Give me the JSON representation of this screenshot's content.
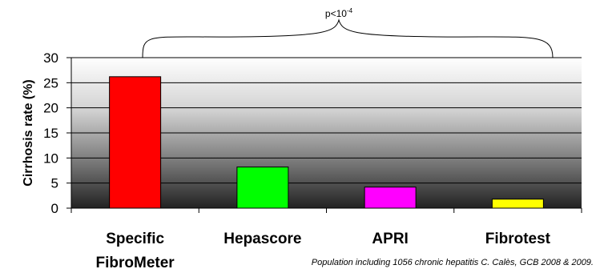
{
  "chart_data": {
    "type": "bar",
    "categories": [
      "Specific FibroMeter",
      "Hepascore",
      "APRI",
      "Fibrotest"
    ],
    "category_lines": [
      [
        "Specific",
        "FibroMeter"
      ],
      [
        "Hepascore"
      ],
      [
        "APRI"
      ],
      [
        "Fibrotest"
      ]
    ],
    "values": [
      26.2,
      8.2,
      4.2,
      1.8
    ],
    "bar_colors": [
      "#ff0000",
      "#00ff00",
      "#ff00ff",
      "#ffff00"
    ],
    "xlabel": "",
    "ylabel": "Cirrhosis rate (%)",
    "ylim": [
      0,
      30
    ],
    "yticks": [
      0,
      5,
      10,
      15,
      20,
      25,
      30
    ],
    "grid": true,
    "annotation": {
      "base": "p<10",
      "exponent": "-4"
    },
    "footnote": "Population including 1056 chronic hepatitis C. Calès, GCB 2008 & 2009."
  }
}
